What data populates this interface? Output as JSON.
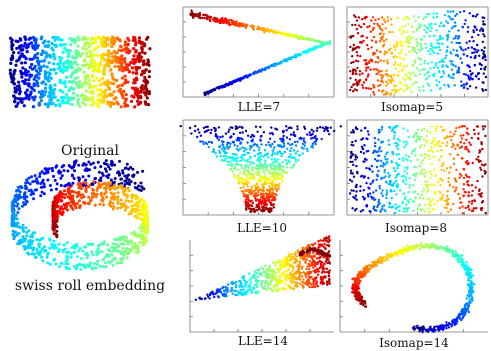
{
  "chart_data": [
    {
      "id": "original",
      "type": "scatter",
      "caption": "Original",
      "shape": "rectangle",
      "colormap": "jet"
    },
    {
      "id": "swiss",
      "type": "scatter",
      "caption": "swiss roll embedding",
      "shape": "swiss-roll",
      "colormap": "jet"
    },
    {
      "id": "lle7",
      "type": "scatter",
      "caption": "LLE=7",
      "shape": "v-fold",
      "colormap": "jet"
    },
    {
      "id": "isomap5",
      "type": "scatter",
      "caption": "Isomap=5",
      "shape": "wide-band",
      "colormap": "jet"
    },
    {
      "id": "lle10",
      "type": "scatter",
      "caption": "LLE=10",
      "shape": "funnel",
      "colormap": "jet"
    },
    {
      "id": "isomap8",
      "type": "scatter",
      "caption": "Isomap=8",
      "shape": "wide-band",
      "colormap": "jet"
    },
    {
      "id": "lle14",
      "type": "scatter",
      "caption": "LLE=14",
      "shape": "wedge",
      "colormap": "jet"
    },
    {
      "id": "isomap14",
      "type": "scatter",
      "caption": "Isomap=14",
      "shape": "loop",
      "colormap": "jet"
    }
  ],
  "colors": {
    "jet": [
      "#00007f",
      "#0000ff",
      "#00a0ff",
      "#00ffff",
      "#80ff80",
      "#ffff00",
      "#ff8000",
      "#ff0000",
      "#7f0000"
    ],
    "axis": "#777777"
  }
}
